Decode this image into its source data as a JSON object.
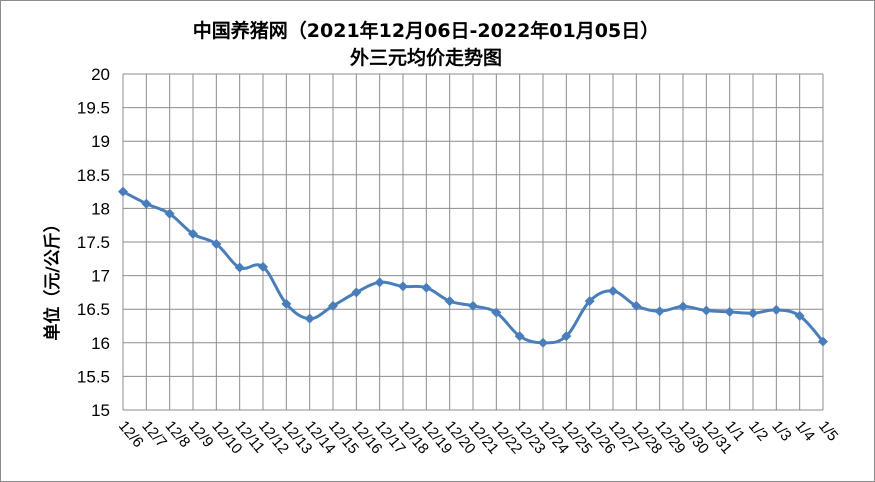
{
  "chart_data": {
    "type": "line",
    "title": "中国养猪网（2021年12月06日-2022年01月05日）",
    "subtitle": "外三元均价走势图",
    "xlabel": "",
    "ylabel": "单位（元/公斤）",
    "ylim": [
      15,
      20
    ],
    "ytick_step": 0.5,
    "yticks": [
      "15",
      "15.5",
      "16",
      "16.5",
      "17",
      "17.5",
      "18",
      "18.5",
      "19",
      "19.5",
      "20"
    ],
    "grid": true,
    "legend": "none",
    "categories": [
      "12/6",
      "12/7",
      "12/8",
      "12/9",
      "12/10",
      "12/11",
      "12/12",
      "12/13",
      "12/14",
      "12/15",
      "12/16",
      "12/17",
      "12/18",
      "12/19",
      "12/20",
      "12/21",
      "12/22",
      "12/23",
      "12/24",
      "12/25",
      "12/26",
      "12/27",
      "12/28",
      "12/29",
      "12/30",
      "12/31",
      "1/1",
      "1/2",
      "1/3",
      "1/4",
      "1/5"
    ],
    "series": [
      {
        "color": "#4a7ebb",
        "values": [
          18.25,
          18.07,
          17.92,
          17.62,
          17.47,
          17.12,
          17.13,
          16.58,
          16.36,
          16.55,
          16.75,
          16.9,
          16.84,
          16.82,
          16.62,
          16.55,
          16.45,
          16.1,
          16.0,
          16.1,
          16.62,
          16.77,
          16.55,
          16.47,
          16.54,
          16.48,
          16.46,
          16.44,
          16.49,
          16.4,
          16.02
        ]
      }
    ]
  }
}
